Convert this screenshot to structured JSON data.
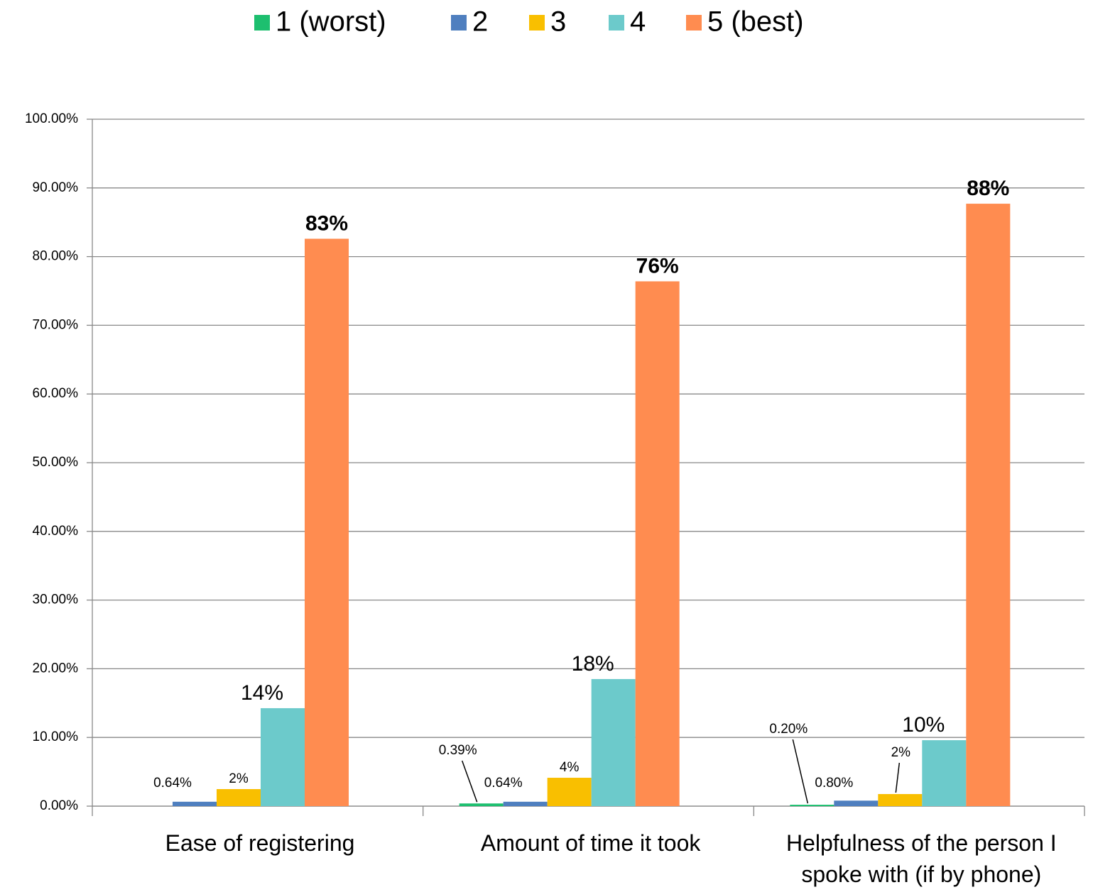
{
  "chart_data": {
    "type": "bar",
    "categories": [
      "Ease of registering",
      "Amount of time it took",
      "Helpfulness of the person I spoke with (if by phone)"
    ],
    "series": [
      {
        "name": "1 (worst)",
        "color": "#1dbf6f",
        "values": [
          0,
          0.39,
          0.2
        ],
        "value_labels": [
          null,
          "0.39%",
          "0.20%"
        ]
      },
      {
        "name": "2",
        "color": "#4f7fbf",
        "values": [
          0.64,
          0.64,
          0.8
        ],
        "value_labels": [
          "0.64%",
          "0.64%",
          "0.80%"
        ]
      },
      {
        "name": "3",
        "color": "#f9bf00",
        "values": [
          2.48,
          4.13,
          1.76
        ],
        "value_labels": [
          "2%",
          "4%",
          "2%"
        ]
      },
      {
        "name": "4",
        "color": "#6ccacb",
        "values": [
          14.26,
          18.5,
          9.6
        ],
        "value_labels": [
          "14%",
          "18%",
          "10%"
        ]
      },
      {
        "name": "5 (best)",
        "color": "#ff8c50",
        "values": [
          82.6,
          76.4,
          87.7
        ],
        "value_labels": [
          "83%",
          "76%",
          "88%"
        ]
      }
    ],
    "ylim": [
      0,
      100
    ],
    "yticks": [
      {
        "value": 0,
        "label": "0.00%"
      },
      {
        "value": 10,
        "label": "10.00%"
      },
      {
        "value": 20,
        "label": "20.00%"
      },
      {
        "value": 30,
        "label": "30.00%"
      },
      {
        "value": 40,
        "label": "40.00%"
      },
      {
        "value": 50,
        "label": "50.00%"
      },
      {
        "value": 60,
        "label": "60.00%"
      },
      {
        "value": 70,
        "label": "70.00%"
      },
      {
        "value": 80,
        "label": "80.00%"
      },
      {
        "value": 90,
        "label": "90.00%"
      },
      {
        "value": 100,
        "label": "100.00%"
      }
    ],
    "grid": true,
    "legend": "top"
  }
}
